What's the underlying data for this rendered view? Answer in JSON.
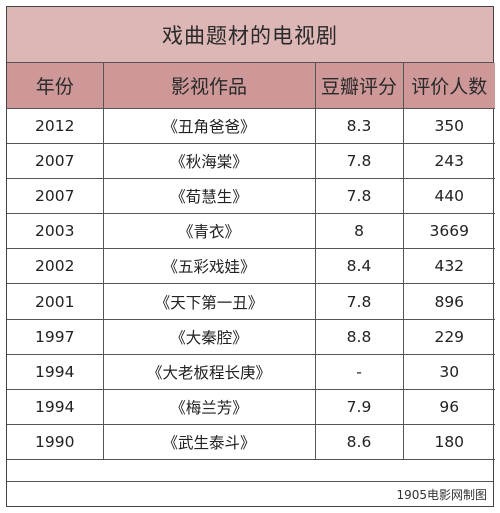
{
  "title": "戏曲题材的电视剧",
  "headers": [
    "年份",
    "影视作品",
    "豆瓣评分",
    "评价人数"
  ],
  "rows": [
    [
      "2012",
      "《丑角爸爸》",
      "8.3",
      "350"
    ],
    [
      "2007",
      "《秋海棠》",
      "7.8",
      "243"
    ],
    [
      "2007",
      "《荀慧生》",
      "7.8",
      "440"
    ],
    [
      "2003",
      "《青衣》",
      "8",
      "3669"
    ],
    [
      "2002",
      "《五彩戏娃》",
      "8.4",
      "432"
    ],
    [
      "2001",
      "《天下第一丑》",
      "7.8",
      "896"
    ],
    [
      "1997",
      "《大秦腔》",
      "8.8",
      "229"
    ],
    [
      "1994",
      "《大老板程长庚》",
      "-",
      "30"
    ],
    [
      "1994",
      "《梅兰芳》",
      "7.9",
      "96"
    ],
    [
      "1990",
      "《武生泰斗》",
      "8.6",
      "180"
    ]
  ],
  "footer": "1905电影网制图",
  "colors": {
    "title_bg": "#ddb6b6",
    "header_bg": "#cf9898"
  }
}
